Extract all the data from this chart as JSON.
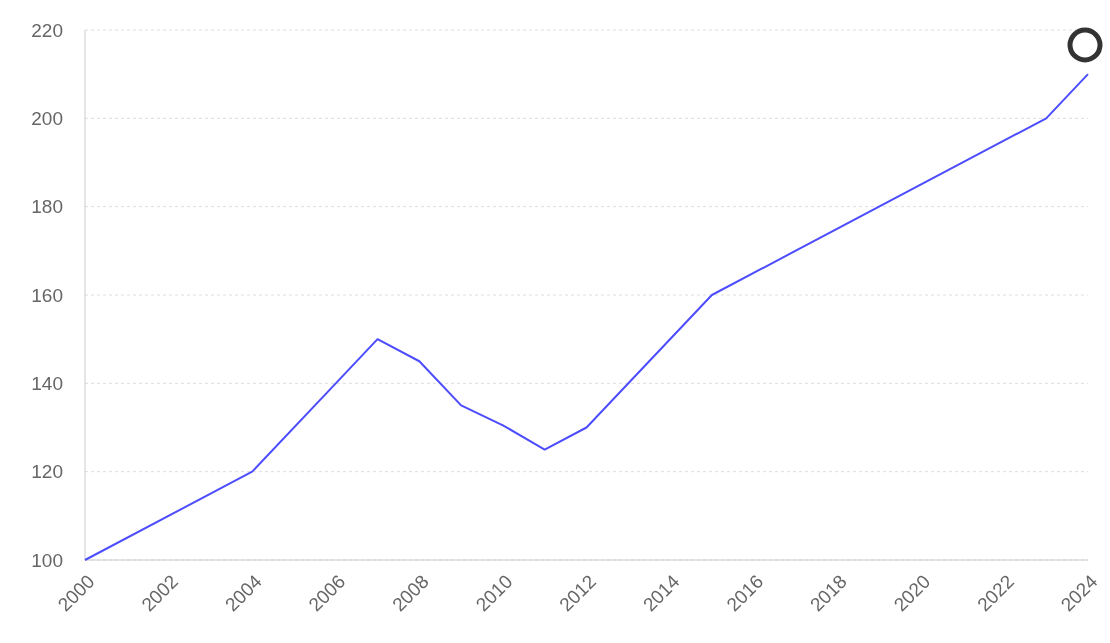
{
  "chart_data": {
    "type": "line",
    "x": [
      2000,
      2004,
      2006,
      2007,
      2008,
      2009,
      2010,
      2011,
      2012,
      2015,
      2023,
      2024
    ],
    "series": [
      {
        "color": "#4d4dff",
        "values": [
          100,
          120,
          140,
          150,
          145,
          135,
          130.5,
          125,
          130,
          160,
          200,
          210
        ]
      }
    ],
    "xlim": [
      2000,
      2024
    ],
    "xticks": [
      2000,
      2002,
      2004,
      2006,
      2008,
      2010,
      2012,
      2014,
      2016,
      2018,
      2020,
      2022,
      2024
    ],
    "ylim": [
      100,
      220
    ],
    "yticks": [
      100,
      120,
      140,
      160,
      180,
      200,
      220
    ],
    "grid": "y",
    "marker": "none",
    "line_style": "solid"
  }
}
